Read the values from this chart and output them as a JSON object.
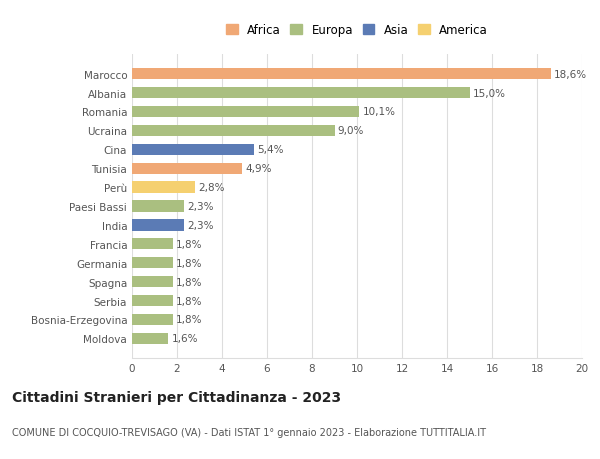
{
  "categories": [
    "Marocco",
    "Albania",
    "Romania",
    "Ucraina",
    "Cina",
    "Tunisia",
    "Perù",
    "Paesi Bassi",
    "India",
    "Francia",
    "Germania",
    "Spagna",
    "Serbia",
    "Bosnia-Erzegovina",
    "Moldova"
  ],
  "values": [
    18.6,
    15.0,
    10.1,
    9.0,
    5.4,
    4.9,
    2.8,
    2.3,
    2.3,
    1.8,
    1.8,
    1.8,
    1.8,
    1.8,
    1.6
  ],
  "labels": [
    "18,6%",
    "15,0%",
    "10,1%",
    "9,0%",
    "5,4%",
    "4,9%",
    "2,8%",
    "2,3%",
    "2,3%",
    "1,8%",
    "1,8%",
    "1,8%",
    "1,8%",
    "1,8%",
    "1,6%"
  ],
  "continents": [
    "Africa",
    "Europa",
    "Europa",
    "Europa",
    "Asia",
    "Africa",
    "America",
    "Europa",
    "Asia",
    "Europa",
    "Europa",
    "Europa",
    "Europa",
    "Europa",
    "Europa"
  ],
  "colors": {
    "Africa": "#F0A875",
    "Europa": "#AABF80",
    "Asia": "#5B7BB5",
    "America": "#F5D070"
  },
  "legend_order": [
    "Africa",
    "Europa",
    "Asia",
    "America"
  ],
  "title": "Cittadini Stranieri per Cittadinanza - 2023",
  "subtitle": "COMUNE DI COCQUIO-TREVISAGO (VA) - Dati ISTAT 1° gennaio 2023 - Elaborazione TUTTITALIA.IT",
  "xlim": [
    0,
    20
  ],
  "xticks": [
    0,
    2,
    4,
    6,
    8,
    10,
    12,
    14,
    16,
    18,
    20
  ],
  "background_color": "#ffffff",
  "grid_color": "#dddddd",
  "bar_height": 0.6,
  "title_fontsize": 10,
  "subtitle_fontsize": 7,
  "label_fontsize": 7.5,
  "tick_fontsize": 7.5,
  "legend_fontsize": 8.5
}
